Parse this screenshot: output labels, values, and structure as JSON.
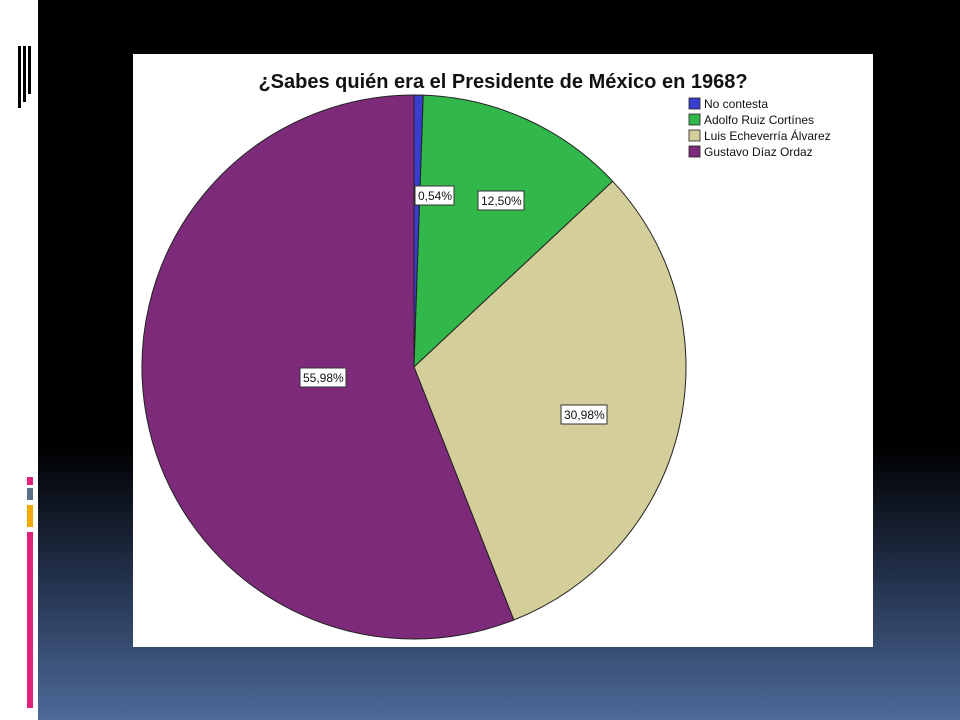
{
  "slide": {
    "accent_colors": [
      "#e0247c",
      "#5a6f86",
      "#f2a900",
      "#e0247c"
    ]
  },
  "chart_data": {
    "type": "pie",
    "title": "¿Sabes quién era el Presidente de México en 1968?",
    "legend_position": "top-right",
    "slices": [
      {
        "label": "No contesta",
        "value": 0.54,
        "value_label": "0,54%",
        "color": "#3a3ecf"
      },
      {
        "label": "Adolfo Ruiz Cortínes",
        "value": 12.5,
        "value_label": "12,50%",
        "color": "#31b74a"
      },
      {
        "label": "Luis Echeverría Álvarez",
        "value": 30.98,
        "value_label": "30,98%",
        "color": "#d4cf9a"
      },
      {
        "label": "Gustavo Díaz Ordaz",
        "value": 55.98,
        "value_label": "55,98%",
        "color": "#7d2a7a"
      }
    ]
  }
}
